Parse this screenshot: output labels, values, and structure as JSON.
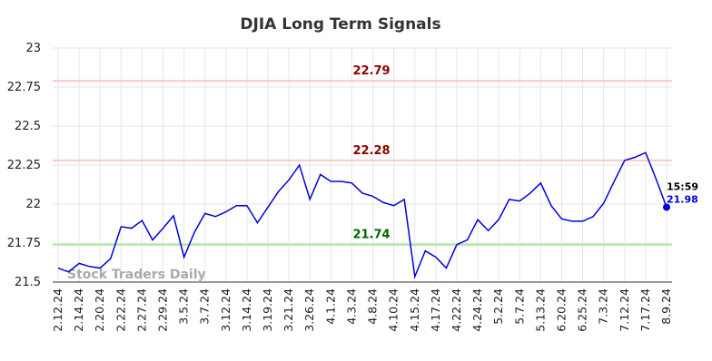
{
  "chart_data": {
    "type": "line",
    "title": "DJIA Long Term Signals",
    "categories": [
      "2.12.24",
      null,
      "2.14.24",
      null,
      "2.20.24",
      null,
      "2.22.24",
      null,
      "2.27.24",
      null,
      "2.29.24",
      null,
      "3.5.24",
      null,
      "3.7.24",
      null,
      "3.12.24",
      null,
      "3.14.24",
      null,
      "3.19.24",
      null,
      "3.21.24",
      null,
      "3.26.24",
      null,
      "4.1.24",
      null,
      "4.3.24",
      null,
      "4.8.24",
      null,
      "4.10.24",
      null,
      "4.15.24",
      null,
      "4.17.24",
      null,
      "4.22.24",
      null,
      "4.24.24",
      null,
      "5.2.24",
      null,
      "5.7.24",
      null,
      "5.13.24",
      null,
      "6.20.24",
      null,
      "6.25.24",
      null,
      "7.3.24",
      null,
      "7.12.24",
      null,
      "7.17.24",
      null,
      "8.9.24"
    ],
    "values": [
      21.59,
      21.565,
      21.62,
      21.6,
      21.59,
      21.65,
      21.855,
      21.845,
      21.895,
      21.77,
      21.845,
      21.925,
      21.66,
      21.82,
      21.94,
      21.92,
      21.95,
      21.99,
      21.99,
      21.88,
      21.98,
      22.08,
      22.155,
      22.25,
      22.03,
      22.19,
      22.145,
      22.145,
      22.135,
      22.07,
      22.05,
      22.01,
      21.99,
      22.03,
      21.535,
      21.7,
      21.66,
      21.59,
      21.74,
      21.77,
      21.9,
      21.83,
      21.9,
      22.03,
      22.02,
      22.07,
      22.135,
      21.99,
      21.905,
      21.89,
      21.89,
      21.92,
      22.005,
      22.145,
      22.28,
      22.3,
      22.33,
      22.16,
      21.98
    ],
    "color": "#0000dd",
    "ylim": [
      21.5,
      23
    ],
    "yticks": [
      21.5,
      21.75,
      22,
      22.25,
      22.5,
      22.75,
      23
    ],
    "grid": true,
    "hlines": [
      {
        "value": 22.79,
        "color": "#8b0000",
        "line_color": "#ffc8c8"
      },
      {
        "value": 22.28,
        "color": "#8b0000",
        "line_color": "#ffc8c8"
      },
      {
        "value": 21.74,
        "color": "#006400",
        "line_color": "#a8e6a0"
      }
    ],
    "annotation": "15:59",
    "watermark": "Stock Traders Daily"
  }
}
